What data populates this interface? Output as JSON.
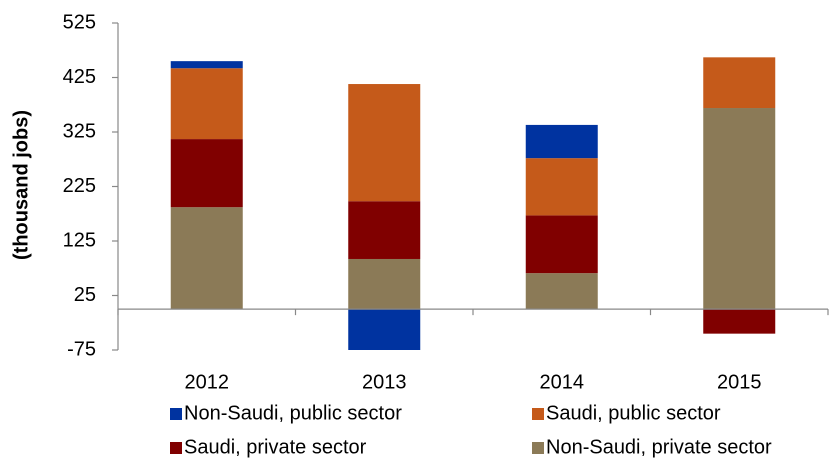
{
  "chart_data": {
    "type": "bar",
    "stacked": true,
    "y_label": "(thousand jobs)",
    "categories": [
      "2012",
      "2013",
      "2014",
      "2015"
    ],
    "series": [
      {
        "name": "Non-Saudi, public sector",
        "color": "#0033a0",
        "values": [
          13,
          -75,
          61,
          0
        ]
      },
      {
        "name": "Saudi, public sector",
        "color": "#c55a1a",
        "values": [
          130,
          215,
          105,
          93
        ]
      },
      {
        "name": "Saudi, private sector",
        "color": "#800000",
        "values": [
          125,
          106,
          106,
          -45
        ]
      },
      {
        "name": "Non-Saudi, private sector",
        "color": "#8b7a57",
        "values": [
          187,
          92,
          66,
          369
        ]
      }
    ],
    "ylim": [
      -75,
      525
    ],
    "yticks": [
      -75,
      25,
      125,
      225,
      325,
      425,
      525
    ]
  }
}
